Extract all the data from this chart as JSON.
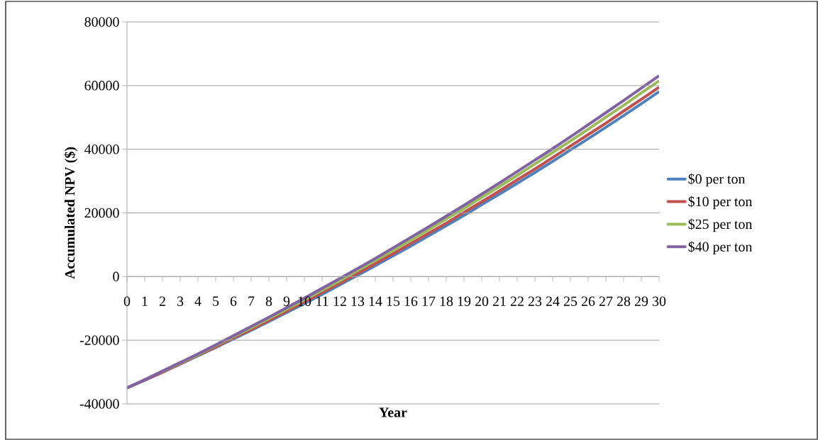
{
  "chart_data": {
    "type": "line",
    "xlabel": "Year",
    "ylabel": "Accumulated NPV ($)",
    "categories": [
      "0",
      "1",
      "2",
      "3",
      "4",
      "5",
      "6",
      "7",
      "8",
      "9",
      "10",
      "11",
      "12",
      "13",
      "14",
      "15",
      "16",
      "17",
      "18",
      "19",
      "20",
      "21",
      "22",
      "23",
      "24",
      "25",
      "26",
      "27",
      "28",
      "29",
      "30"
    ],
    "ylim": [
      -40000,
      80000
    ],
    "yticks": [
      -40000,
      -20000,
      0,
      20000,
      40000,
      60000,
      80000
    ],
    "grid": "y",
    "legend": "right",
    "marker": "none",
    "line_style": "solid",
    "series": [
      {
        "name": "$0 per ton",
        "color": "#4f81bd",
        "values": [
          -35000,
          -32600,
          -30100,
          -27500,
          -24900,
          -22300,
          -19600,
          -16900,
          -14100,
          -11300,
          -8500,
          -5600,
          -2600,
          400,
          3400,
          6500,
          9600,
          12800,
          16000,
          19200,
          22600,
          25900,
          29300,
          32700,
          36200,
          39800,
          43300,
          46900,
          50600,
          54300,
          58100
        ]
      },
      {
        "name": "$10 per ton",
        "color": "#c0504d",
        "values": [
          -35000,
          -32500,
          -30000,
          -27400,
          -24700,
          -22100,
          -19300,
          -16600,
          -13800,
          -10900,
          -8000,
          -5000,
          -2100,
          1000,
          4100,
          7200,
          10400,
          13600,
          16800,
          20200,
          23500,
          26900,
          30400,
          33800,
          37400,
          41000,
          44600,
          48200,
          52000,
          55700,
          59500
        ]
      },
      {
        "name": "$25 per ton",
        "color": "#9bbb59",
        "values": [
          null,
          null,
          -29800,
          -27200,
          -24500,
          -21700,
          -18900,
          -16100,
          -13200,
          -10300,
          -7300,
          -4300,
          -1300,
          1900,
          5000,
          8200,
          11400,
          14700,
          18100,
          21400,
          24900,
          28300,
          31800,
          35400,
          39000,
          42600,
          46300,
          50100,
          53800,
          57700,
          61500
        ]
      },
      {
        "name": "$40 per ton",
        "color": "#8064a2",
        "values": [
          -35000,
          -32400,
          -29700,
          -27000,
          -24300,
          -21500,
          -18600,
          -15700,
          -12800,
          -9800,
          -6800,
          -3700,
          -600,
          2500,
          5700,
          9000,
          12300,
          15600,
          19000,
          22400,
          25900,
          29400,
          33000,
          36600,
          40200,
          43900,
          47700,
          51500,
          55300,
          59200,
          63100
        ]
      }
    ]
  }
}
